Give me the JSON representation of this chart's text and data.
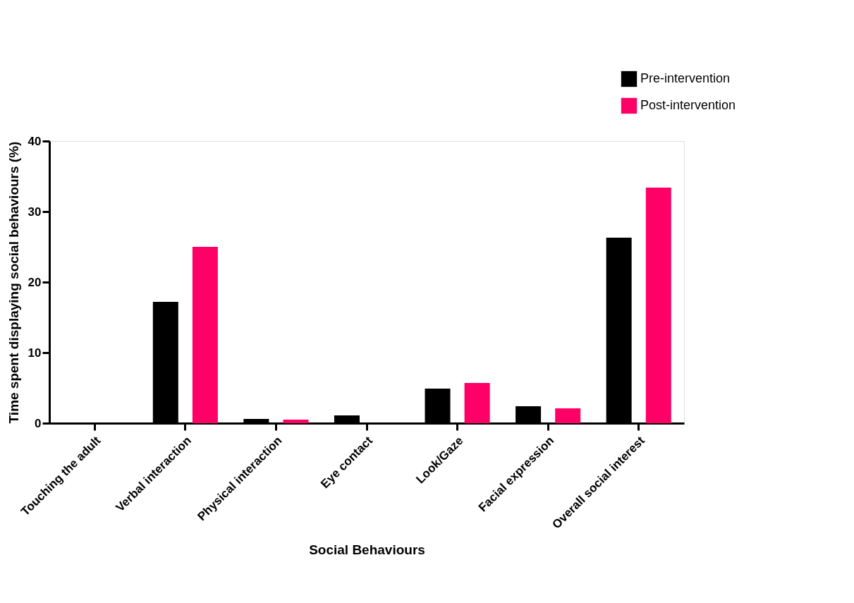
{
  "chart_data": {
    "type": "bar",
    "xlabel": "Social Behaviours",
    "ylabel": "Time spent displaying social behaviours (%)",
    "categories": [
      "Touching the adult",
      "Verbal interaction",
      "Physical interaction",
      "Eye contact",
      "Look/Gaze",
      "Facial expression",
      "Overall social interest"
    ],
    "series": [
      {
        "name": "Pre-intervention",
        "color": "#000000",
        "values": [
          0,
          17.2,
          0.6,
          1.1,
          4.9,
          2.4,
          26.3
        ]
      },
      {
        "name": "Post-intervention",
        "color": "#ff0066",
        "values": [
          0,
          25.0,
          0.5,
          0,
          5.7,
          2.1,
          33.4
        ]
      }
    ],
    "ylim": [
      0,
      40
    ],
    "yticks": [
      0,
      10,
      20,
      30,
      40
    ],
    "grid": false,
    "legend": "top right"
  }
}
